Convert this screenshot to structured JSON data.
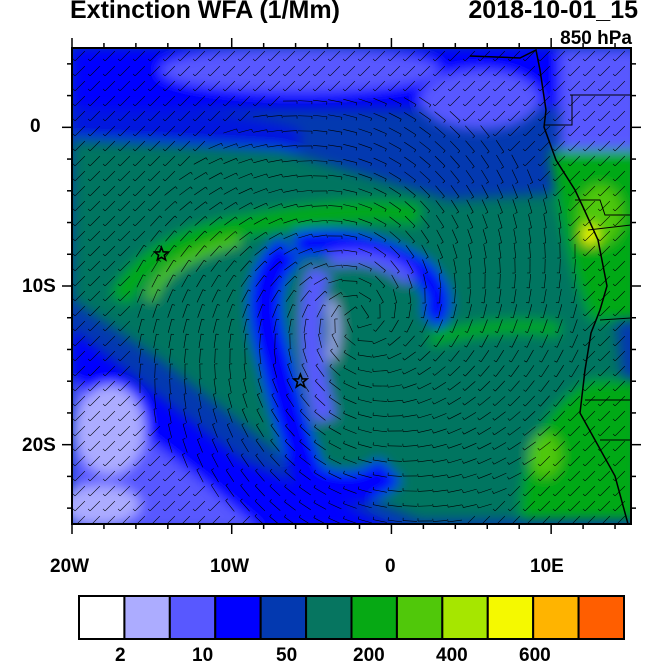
{
  "header": {
    "title": "Extinction WFA (1/Mm)",
    "datetime": "2018-10-01_15",
    "level": "850 hPa"
  },
  "map": {
    "lon_range": [
      -20,
      15
    ],
    "lat_range": [
      -25,
      5
    ],
    "x_ticks": [
      "20W",
      "10W",
      "0",
      "10E"
    ],
    "y_ticks": [
      "0",
      "10S",
      "20S"
    ],
    "markers": [
      {
        "type": "star",
        "lon": -14.4,
        "lat": -8.0
      },
      {
        "type": "star",
        "lon": -5.7,
        "lat": -16.0
      }
    ],
    "vortex_center": {
      "lon": -2,
      "lat": -12
    }
  },
  "colorbar": {
    "colors": [
      "#ffffff",
      "#acacff",
      "#5858ff",
      "#0000ff",
      "#0339b0",
      "#067560",
      "#06a914",
      "#50c80a",
      "#a6e600",
      "#f5f900",
      "#ffb400",
      "#ff5e00",
      "#ff0d00"
    ],
    "labels": [
      "2",
      "10",
      "50",
      "200",
      "400",
      "600"
    ]
  }
}
